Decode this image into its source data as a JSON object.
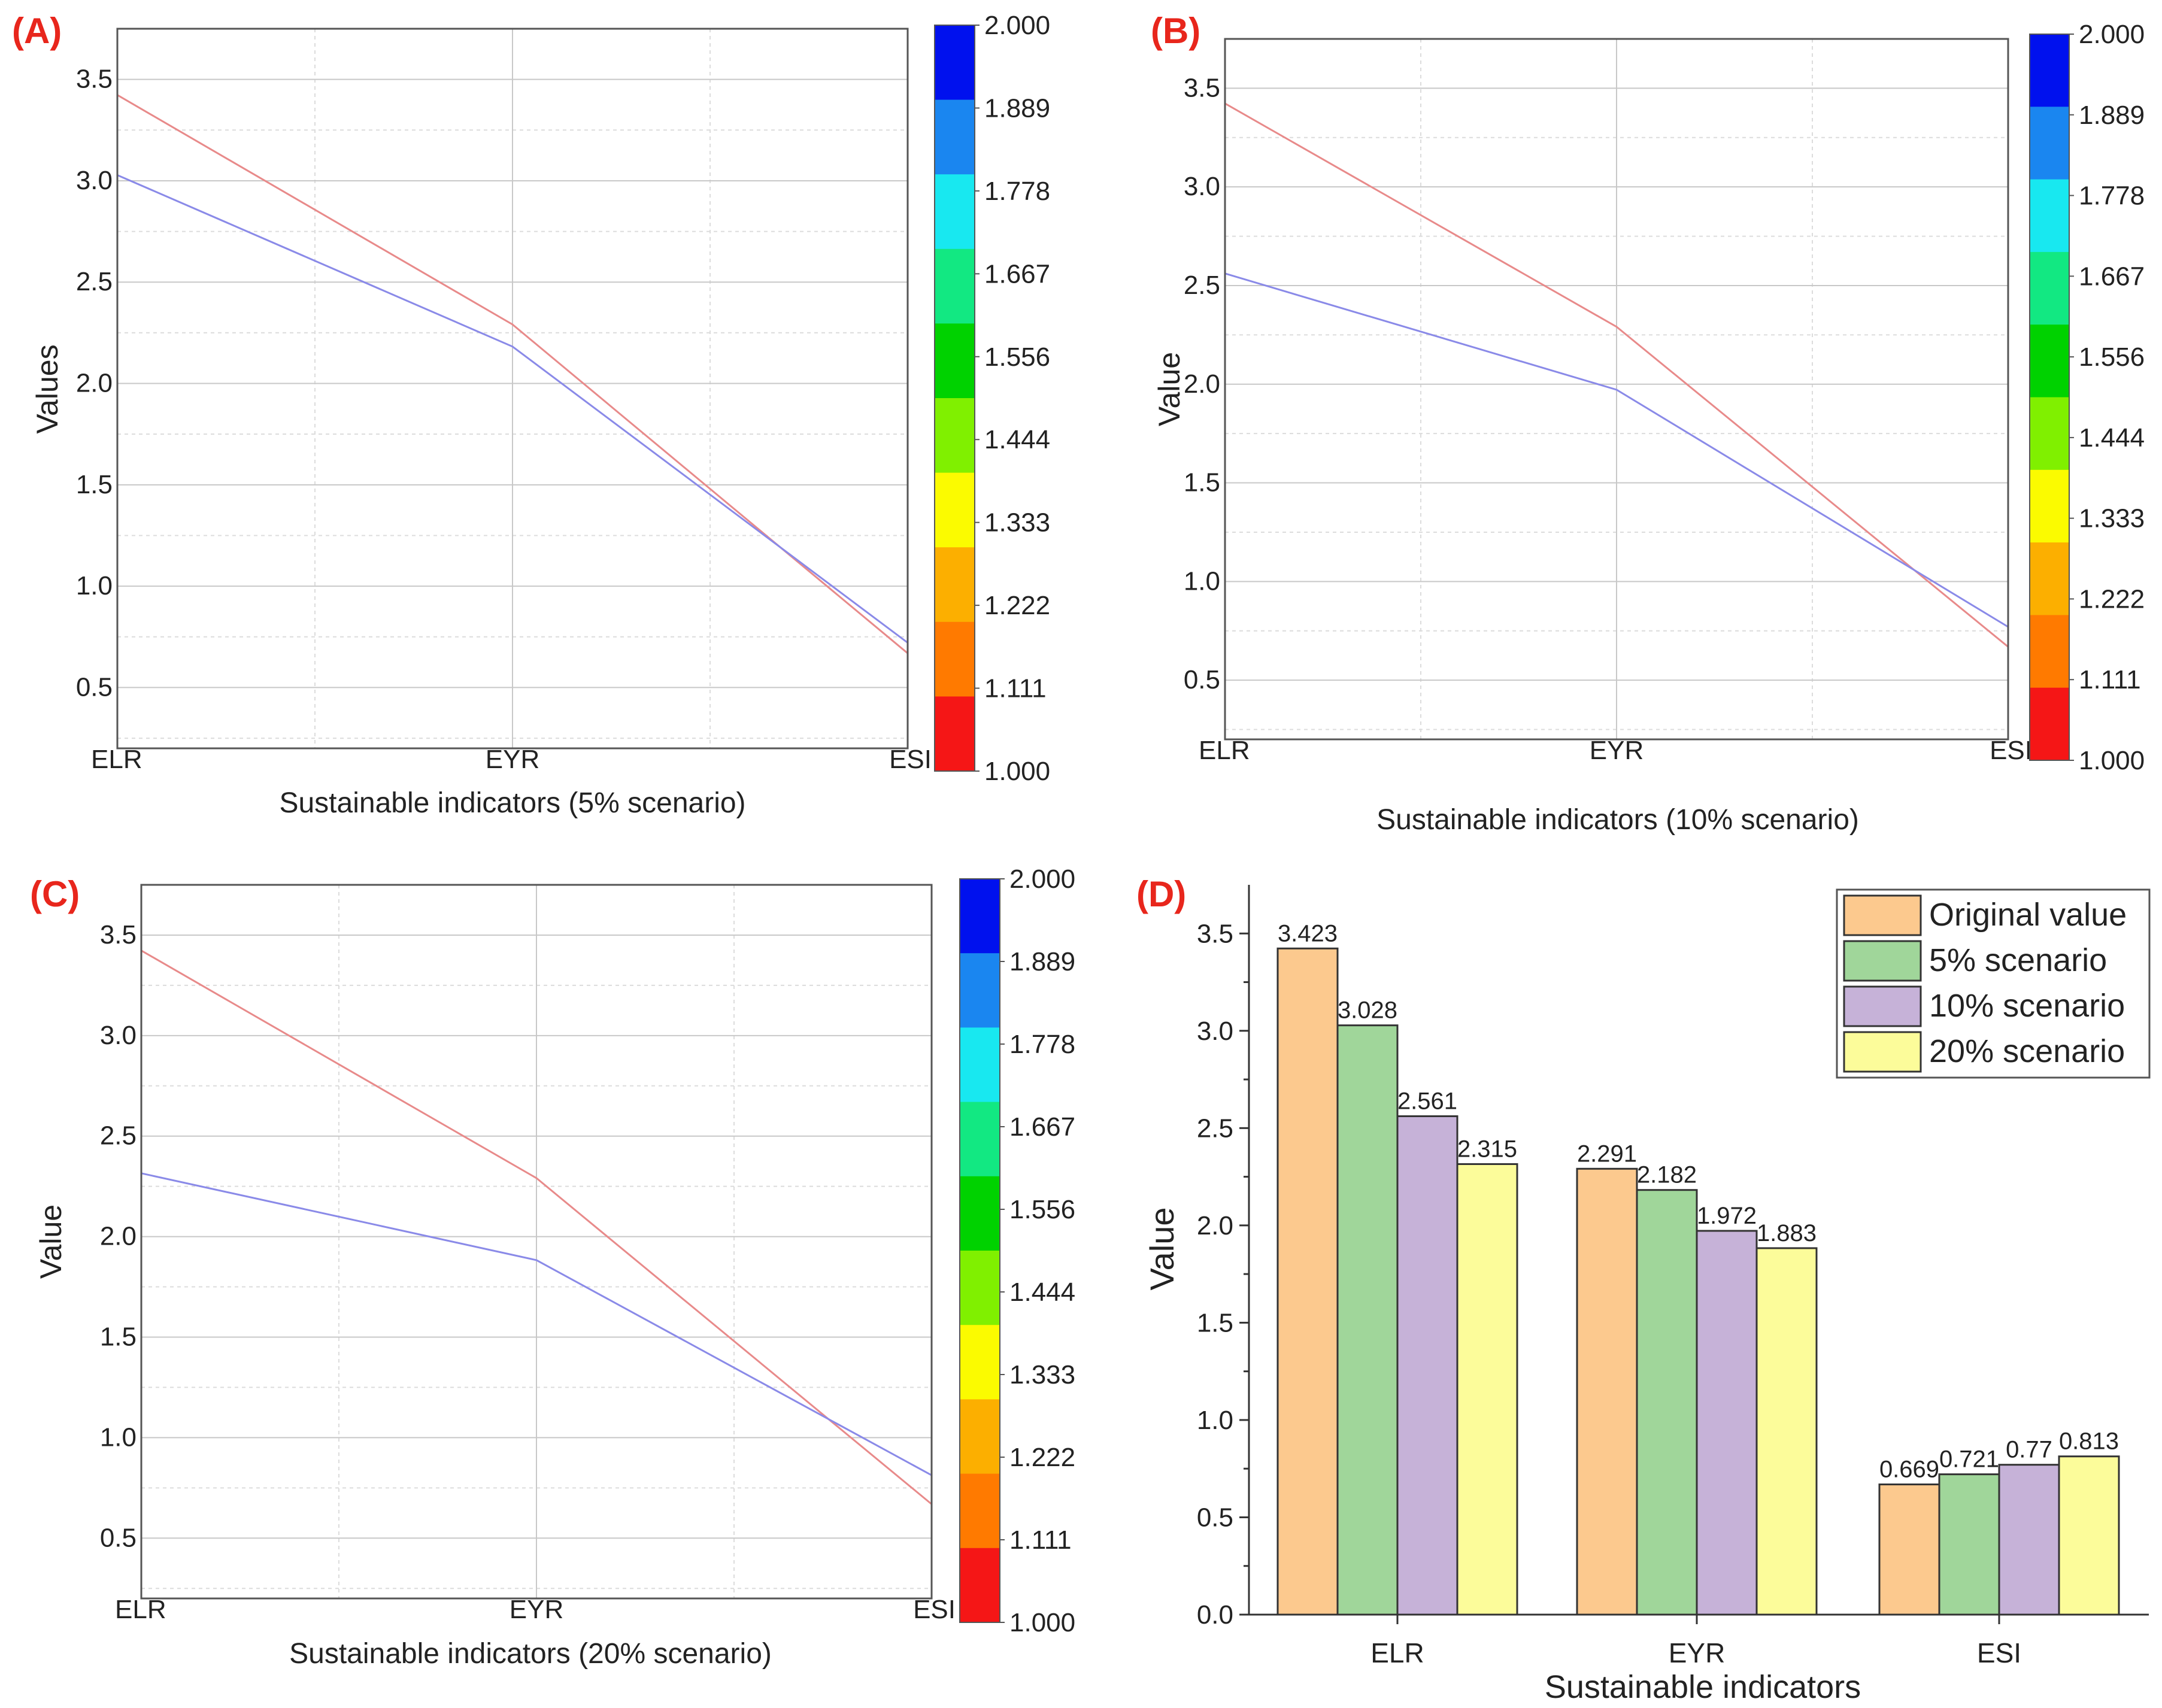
{
  "chart_data": [
    {
      "type": "line",
      "panel_label": "(A)",
      "categories": [
        "ELR",
        "EYR",
        "ESI"
      ],
      "series": [
        {
          "values": [
            3.423,
            2.291,
            0.669
          ],
          "color": "#e88a8a"
        },
        {
          "values": [
            3.028,
            2.182,
            0.721
          ],
          "color": "#8a8ae8"
        }
      ],
      "xlabel": "Sustainable indicators (5% scenario)",
      "ylabel": "Values",
      "ylim": [
        0.2,
        3.75
      ],
      "yticks": [
        "0.5",
        "1.0",
        "1.5",
        "2.0",
        "2.5",
        "3.0",
        "3.5"
      ],
      "grid": true,
      "colorbar": {
        "labels": [
          "2.000",
          "1.889",
          "1.778",
          "1.667",
          "1.556",
          "1.444",
          "1.333",
          "1.222",
          "1.111",
          "1.000"
        ],
        "colors": [
          "#0011ee",
          "#1a86f0",
          "#18e8f0",
          "#12e882",
          "#00d200",
          "#80f000",
          "#fbfb00",
          "#fcaf00",
          "#ff7a00",
          "#f51616"
        ]
      }
    },
    {
      "type": "line",
      "panel_label": "(B)",
      "categories": [
        "ELR",
        "EYR",
        "ESI"
      ],
      "series": [
        {
          "values": [
            3.423,
            2.291,
            0.669
          ],
          "color": "#e88a8a"
        },
        {
          "values": [
            2.561,
            1.972,
            0.77
          ],
          "color": "#8a8ae8"
        }
      ],
      "xlabel": "Sustainable indicators (10% scenario)",
      "ylabel": "Value",
      "ylim": [
        0.2,
        3.75
      ],
      "yticks": [
        "0.5",
        "1.0",
        "1.5",
        "2.0",
        "2.5",
        "3.0",
        "3.5"
      ],
      "grid": true,
      "colorbar": {
        "labels": [
          "2.000",
          "1.889",
          "1.778",
          "1.667",
          "1.556",
          "1.444",
          "1.333",
          "1.222",
          "1.111",
          "1.000"
        ],
        "colors": [
          "#0011ee",
          "#1a86f0",
          "#18e8f0",
          "#12e882",
          "#00d200",
          "#80f000",
          "#fbfb00",
          "#fcaf00",
          "#ff7a00",
          "#f51616"
        ]
      }
    },
    {
      "type": "line",
      "panel_label": "(C)",
      "categories": [
        "ELR",
        "EYR",
        "ESI"
      ],
      "series": [
        {
          "values": [
            3.423,
            2.291,
            0.669
          ],
          "color": "#e88a8a"
        },
        {
          "values": [
            2.315,
            1.883,
            0.813
          ],
          "color": "#8a8ae8"
        }
      ],
      "xlabel": "Sustainable indicators (20% scenario)",
      "ylabel": "Value",
      "ylim": [
        0.2,
        3.75
      ],
      "yticks": [
        "0.5",
        "1.0",
        "1.5",
        "2.0",
        "2.5",
        "3.0",
        "3.5"
      ],
      "grid": true,
      "colorbar": {
        "labels": [
          "2.000",
          "1.889",
          "1.778",
          "1.667",
          "1.556",
          "1.444",
          "1.333",
          "1.222",
          "1.111",
          "1.000"
        ],
        "colors": [
          "#0011ee",
          "#1a86f0",
          "#18e8f0",
          "#12e882",
          "#00d200",
          "#80f000",
          "#fbfb00",
          "#fcaf00",
          "#ff7a00",
          "#f51616"
        ]
      }
    },
    {
      "type": "bar",
      "panel_label": "(D)",
      "categories": [
        "ELR",
        "EYR",
        "ESI"
      ],
      "series": [
        {
          "name": "Original value",
          "values": [
            3.423,
            2.291,
            0.669
          ],
          "labels": [
            "3.423",
            "2.291",
            "0.669"
          ],
          "color": "#fcc98e"
        },
        {
          "name": "5% scenario",
          "values": [
            3.028,
            2.182,
            0.721
          ],
          "labels": [
            "3.028",
            "2.182",
            "0.721"
          ],
          "color": "#a0d69a"
        },
        {
          "name": "10% scenario",
          "values": [
            2.561,
            1.972,
            0.77
          ],
          "labels": [
            "2.561",
            "1.972",
            "0.77"
          ],
          "color": "#c6b2d8"
        },
        {
          "name": "20% scenario",
          "values": [
            2.315,
            1.883,
            0.813
          ],
          "labels": [
            "2.315",
            "1.883",
            "0.813"
          ],
          "color": "#fcfc9a"
        }
      ],
      "xlabel": "Sustainable indicators",
      "ylabel": "Value",
      "ylim": [
        0,
        3.75
      ],
      "yticks": [
        "0.0",
        "0.5",
        "1.0",
        "1.5",
        "2.0",
        "2.5",
        "3.0",
        "3.5"
      ],
      "legend": "top-right",
      "grid": false
    }
  ]
}
